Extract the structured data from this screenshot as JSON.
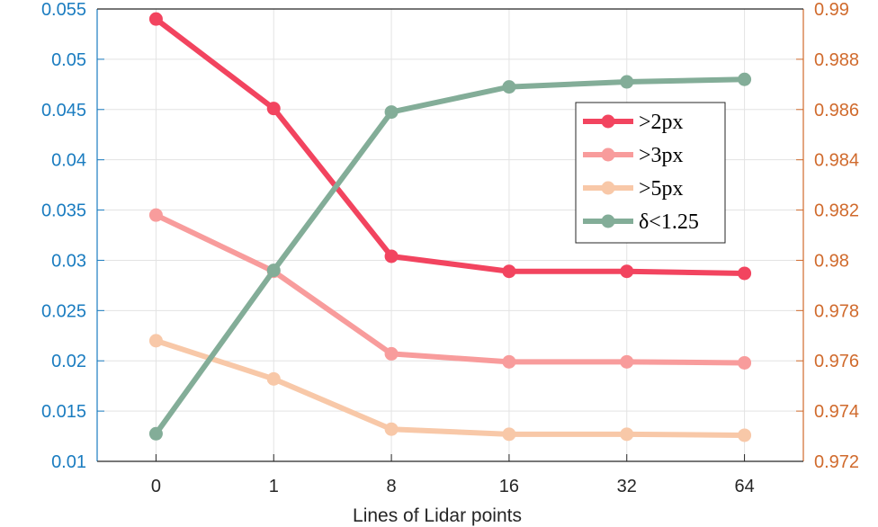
{
  "chart_data": {
    "type": "line",
    "categories": [
      "0",
      "1",
      "8",
      "16",
      "32",
      "64"
    ],
    "xlabel": "Lines of Lidar points",
    "y_left": {
      "ylim": [
        0.01,
        0.055
      ],
      "ticks": [
        "0.01",
        "0.015",
        "0.02",
        "0.025",
        "0.03",
        "0.035",
        "0.04",
        "0.045",
        "0.05",
        "0.055"
      ],
      "color": "#1a7cc0"
    },
    "y_right": {
      "ylim": [
        0.972,
        0.99
      ],
      "ticks": [
        "0.972",
        "0.974",
        "0.976",
        "0.978",
        "0.98",
        "0.982",
        "0.984",
        "0.986",
        "0.988",
        "0.99"
      ],
      "color": "#d06a2c"
    },
    "grid": true,
    "legend_position": "right",
    "series": [
      {
        "name": ">2px",
        "axis": "left",
        "color": "#f2445f",
        "values": [
          0.054,
          0.0451,
          0.0304,
          0.0289,
          0.0289,
          0.0287
        ]
      },
      {
        "name": ">3px",
        "axis": "left",
        "color": "#f89c9c",
        "values": [
          0.0345,
          0.0289,
          0.0207,
          0.0199,
          0.0199,
          0.0198
        ]
      },
      {
        "name": ">5px",
        "axis": "left",
        "color": "#f8c8a8",
        "values": [
          0.022,
          0.0182,
          0.0132,
          0.0127,
          0.0127,
          0.0126
        ]
      },
      {
        "name": "δ<1.25",
        "axis": "right",
        "color": "#83ad98",
        "values": [
          0.9731,
          0.9796,
          0.9859,
          0.9869,
          0.9871,
          0.9872
        ]
      }
    ]
  }
}
